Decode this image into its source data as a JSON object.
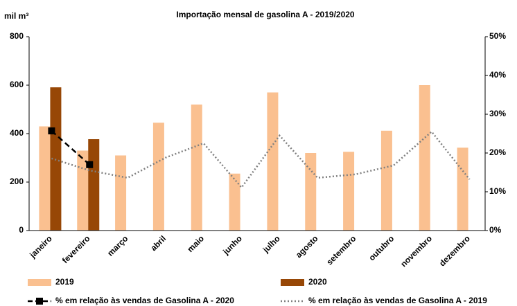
{
  "chart_data": {
    "type": "bar",
    "title": "Importação mensal de gasolina A - 2019/2020",
    "y_label": "mil m³",
    "categories": [
      "janeiro",
      "fevereiro",
      "março",
      "abril",
      "maio",
      "junho",
      "julho",
      "agosto",
      "setembro",
      "outubro",
      "novembro",
      "dezembro"
    ],
    "series": [
      {
        "name": "2019",
        "color": "#fac090",
        "values": [
          430,
          330,
          310,
          445,
          520,
          235,
          570,
          320,
          325,
          412,
          600,
          342
        ]
      },
      {
        "name": "2020",
        "color": "#974706",
        "values": [
          591,
          377,
          null,
          null,
          null,
          null,
          null,
          null,
          null,
          null,
          null,
          null
        ]
      },
      {
        "name": "% em relação às vendas de Gasolina A - 2020",
        "type": "line",
        "axis": "y2",
        "color": "#000000",
        "values": [
          25.7,
          17.0,
          null,
          null,
          null,
          null,
          null,
          null,
          null,
          null,
          null,
          null
        ]
      },
      {
        "name": "% em relação às vendas de Gasolina A - 2019",
        "type": "line",
        "axis": "y2",
        "color": "#808080",
        "values": [
          18.6,
          15.5,
          13.6,
          18.8,
          22.5,
          11.1,
          24.5,
          13.6,
          14.5,
          16.8,
          25.5,
          13.2
        ]
      }
    ],
    "ylim": [
      0,
      800
    ],
    "yticks": [
      0,
      200,
      400,
      600,
      800
    ],
    "y2lim": [
      0,
      50
    ],
    "y2ticks": [
      {
        "value": 0,
        "label": "0%"
      },
      {
        "value": 10,
        "label": "10%"
      },
      {
        "value": 20,
        "label": "20%"
      },
      {
        "value": 30,
        "label": "30%"
      },
      {
        "value": 40,
        "label": "40%"
      },
      {
        "value": 50,
        "label": "50%"
      }
    ]
  }
}
